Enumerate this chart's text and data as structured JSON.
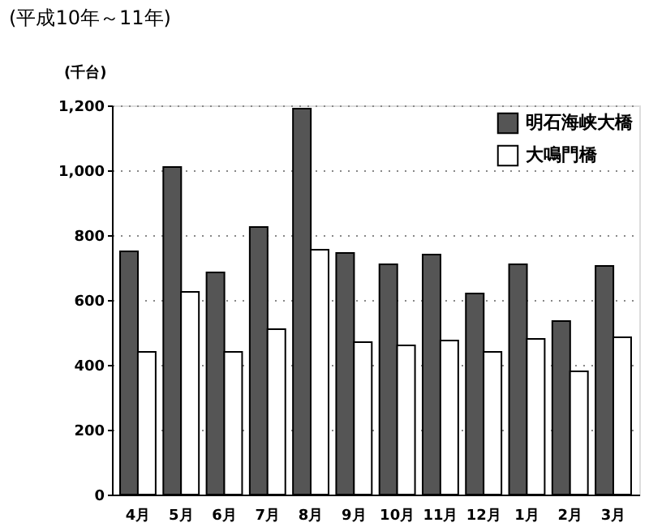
{
  "chart_data": {
    "type": "bar",
    "title": "(平成10年～11年)",
    "ylabel": "(千台)",
    "categories": [
      "4月",
      "5月",
      "6月",
      "7月",
      "8月",
      "9月",
      "10月",
      "11月",
      "12月",
      "1月",
      "2月",
      "3月"
    ],
    "series": [
      {
        "name": "明石海峡大橋",
        "color": "#555555",
        "values": [
          750,
          1010,
          685,
          825,
          1190,
          745,
          710,
          740,
          620,
          710,
          535,
          705
        ]
      },
      {
        "name": "大鳴門橋",
        "color": "#ffffff",
        "values": [
          440,
          625,
          440,
          510,
          755,
          470,
          460,
          475,
          440,
          480,
          380,
          485
        ]
      }
    ],
    "ylim": [
      0,
      1200
    ],
    "yticks": [
      0,
      {
        "value": 200,
        "label": "200"
      },
      400,
      600,
      800,
      {
        "value": 1000,
        "label": "1,000"
      },
      {
        "value": 1200,
        "label": "1,200"
      }
    ],
    "grid": "y",
    "legend": "top right"
  }
}
